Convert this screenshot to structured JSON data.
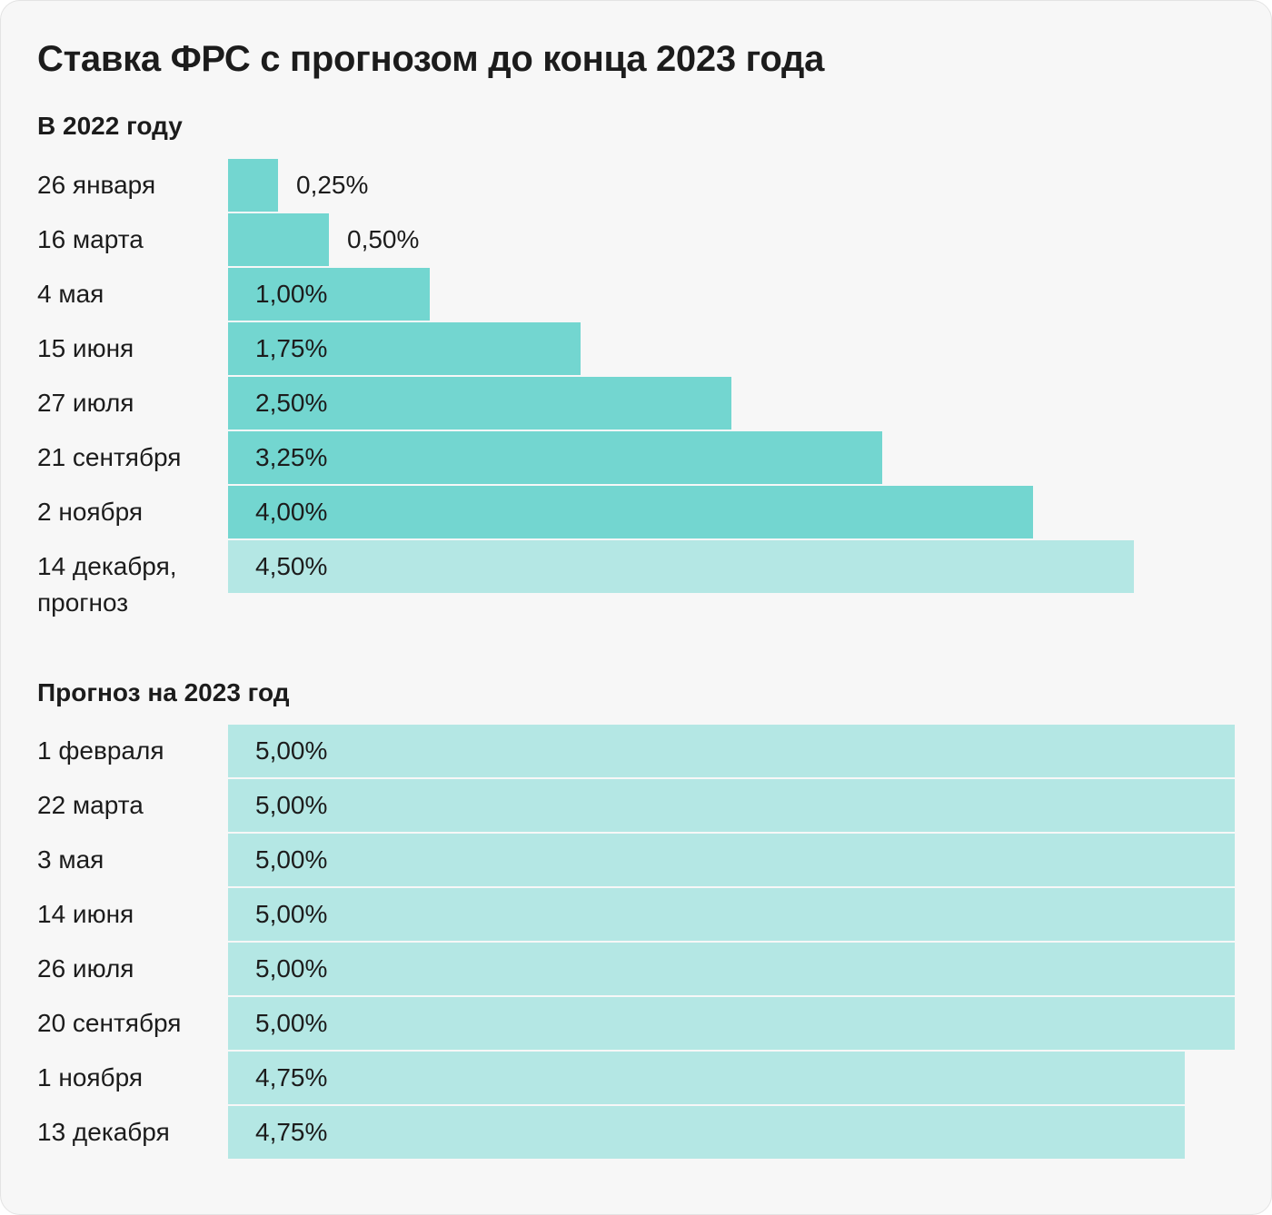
{
  "title": "Ставка ФРС с прогнозом до конца 2023 года",
  "colors": {
    "actual": "#73d6d0",
    "forecast": "#b4e7e4",
    "background": "#f7f7f7"
  },
  "chart_data": [
    {
      "type": "bar",
      "orientation": "horizontal",
      "title": "В 2022 году",
      "unit": "%",
      "categories": [
        "26 января",
        "16 марта",
        "4 мая",
        "15 июня",
        "27 июля",
        "21 сентября",
        "2 ноября",
        "14 декабря, прогноз"
      ],
      "values": [
        0.25,
        0.5,
        1.0,
        1.75,
        2.5,
        3.25,
        4.0,
        4.5
      ],
      "value_labels": [
        "0,25%",
        "0,50%",
        "1,00%",
        "1,75%",
        "2,50%",
        "3,25%",
        "4,00%",
        "4,50%"
      ],
      "bar_colors": [
        "#73d6d0",
        "#73d6d0",
        "#73d6d0",
        "#73d6d0",
        "#73d6d0",
        "#73d6d0",
        "#73d6d0",
        "#b4e7e4"
      ],
      "xlim": [
        0,
        5
      ],
      "grid": false,
      "legend": "none"
    },
    {
      "type": "bar",
      "orientation": "horizontal",
      "title": "Прогноз на 2023 год",
      "unit": "%",
      "categories": [
        "1 февраля",
        "22 марта",
        "3 мая",
        "14 июня",
        "26 июля",
        "20 сентября",
        "1 ноября",
        "13 декабря"
      ],
      "values": [
        5.0,
        5.0,
        5.0,
        5.0,
        5.0,
        5.0,
        4.75,
        4.75
      ],
      "value_labels": [
        "5,00%",
        "5,00%",
        "5,00%",
        "5,00%",
        "5,00%",
        "5,00%",
        "4,75%",
        "4,75%"
      ],
      "bar_colors": [
        "#b4e7e4",
        "#b4e7e4",
        "#b4e7e4",
        "#b4e7e4",
        "#b4e7e4",
        "#b4e7e4",
        "#b4e7e4",
        "#b4e7e4"
      ],
      "xlim": [
        0,
        5
      ],
      "grid": false,
      "legend": "none"
    }
  ]
}
